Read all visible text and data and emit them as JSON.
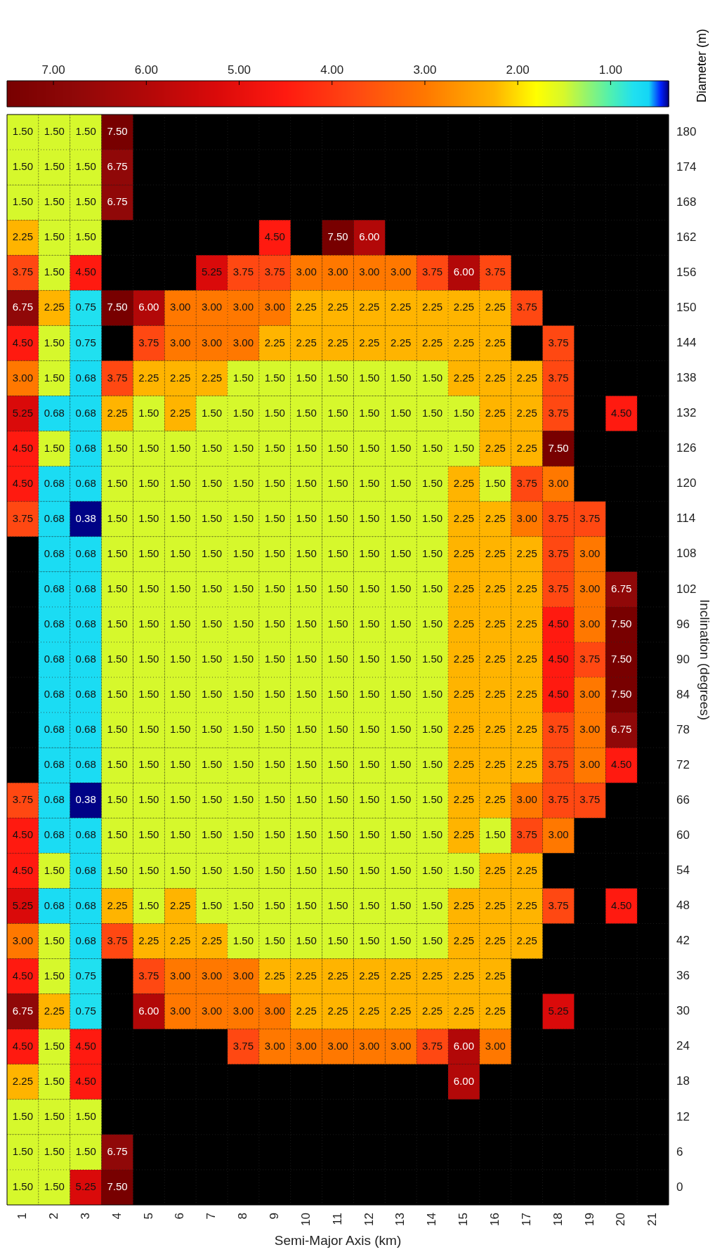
{
  "chart_data": {
    "type": "heatmap",
    "xlabel": "Semi-Major Axis (km)",
    "ylabel": "Inclination (degrees)",
    "clabel": "Diameter (m)",
    "categories": [
      "1",
      "2",
      "3",
      "4",
      "5",
      "6",
      "7",
      "8",
      "9",
      "10",
      "11",
      "12",
      "13",
      "14",
      "15",
      "16",
      "17",
      "18",
      "19",
      "20",
      "21"
    ],
    "y_categories": [
      "180",
      "174",
      "168",
      "162",
      "156",
      "150",
      "144",
      "138",
      "132",
      "126",
      "120",
      "114",
      "108",
      "102",
      "96",
      "90",
      "84",
      "78",
      "72",
      "66",
      "60",
      "54",
      "48",
      "42",
      "36",
      "30",
      "24",
      "18",
      "12",
      "6",
      "0"
    ],
    "clim": [
      7.5,
      0.375
    ],
    "cticks": [
      {
        "value": 7,
        "label": "7.00"
      },
      {
        "value": 6,
        "label": "6.00"
      },
      {
        "value": 5,
        "label": "5.00"
      },
      {
        "value": 4,
        "label": "4.00"
      },
      {
        "value": 3,
        "label": "3.00"
      },
      {
        "value": 2,
        "label": "2.00"
      },
      {
        "value": 1,
        "label": "1.00"
      }
    ],
    "cells": [
      [
        1.5,
        1.5,
        1.5,
        7.5,
        null,
        null,
        null,
        null,
        null,
        null,
        null,
        null,
        null,
        null,
        null,
        null,
        null,
        null,
        null,
        null,
        null
      ],
      [
        1.5,
        1.5,
        1.5,
        6.75,
        null,
        null,
        null,
        null,
        null,
        null,
        null,
        null,
        null,
        null,
        null,
        null,
        null,
        null,
        null,
        null,
        null
      ],
      [
        1.5,
        1.5,
        1.5,
        6.75,
        null,
        null,
        null,
        null,
        null,
        null,
        null,
        null,
        null,
        null,
        null,
        null,
        null,
        null,
        null,
        null,
        null
      ],
      [
        2.25,
        1.5,
        1.5,
        null,
        null,
        null,
        null,
        null,
        4.5,
        null,
        7.5,
        6,
        null,
        null,
        null,
        null,
        null,
        null,
        null,
        null,
        null
      ],
      [
        3.75,
        1.5,
        4.5,
        null,
        null,
        null,
        5.25,
        3.75,
        3.75,
        3,
        3,
        3,
        3,
        3.75,
        6,
        3.75,
        null,
        null,
        null,
        null,
        null
      ],
      [
        6.75,
        2.25,
        0.75,
        7.5,
        6,
        3,
        3,
        3,
        3,
        2.25,
        2.25,
        2.25,
        2.25,
        2.25,
        2.25,
        2.25,
        3.75,
        null,
        null,
        null,
        null
      ],
      [
        4.5,
        1.5,
        0.75,
        null,
        3.75,
        3,
        3,
        3,
        2.25,
        2.25,
        2.25,
        2.25,
        2.25,
        2.25,
        2.25,
        2.25,
        null,
        3.75,
        null,
        null,
        null
      ],
      [
        3,
        1.5,
        0.68,
        3.75,
        2.25,
        2.25,
        2.25,
        1.5,
        1.5,
        1.5,
        1.5,
        1.5,
        1.5,
        1.5,
        2.25,
        2.25,
        2.25,
        3.75,
        null,
        null,
        null
      ],
      [
        5.25,
        0.68,
        0.68,
        2.25,
        1.5,
        2.25,
        1.5,
        1.5,
        1.5,
        1.5,
        1.5,
        1.5,
        1.5,
        1.5,
        1.5,
        2.25,
        2.25,
        3.75,
        null,
        4.5,
        null
      ],
      [
        4.5,
        1.5,
        0.68,
        1.5,
        1.5,
        1.5,
        1.5,
        1.5,
        1.5,
        1.5,
        1.5,
        1.5,
        1.5,
        1.5,
        1.5,
        2.25,
        2.25,
        7.5,
        null,
        null,
        null
      ],
      [
        4.5,
        0.68,
        0.68,
        1.5,
        1.5,
        1.5,
        1.5,
        1.5,
        1.5,
        1.5,
        1.5,
        1.5,
        1.5,
        1.5,
        2.25,
        1.5,
        3.75,
        3,
        null,
        null,
        null
      ],
      [
        3.75,
        0.68,
        0.38,
        1.5,
        1.5,
        1.5,
        1.5,
        1.5,
        1.5,
        1.5,
        1.5,
        1.5,
        1.5,
        1.5,
        2.25,
        2.25,
        3,
        3.75,
        3.75,
        null,
        null
      ],
      [
        null,
        0.68,
        0.68,
        1.5,
        1.5,
        1.5,
        1.5,
        1.5,
        1.5,
        1.5,
        1.5,
        1.5,
        1.5,
        1.5,
        2.25,
        2.25,
        2.25,
        3.75,
        3,
        null,
        null
      ],
      [
        null,
        0.68,
        0.68,
        1.5,
        1.5,
        1.5,
        1.5,
        1.5,
        1.5,
        1.5,
        1.5,
        1.5,
        1.5,
        1.5,
        2.25,
        2.25,
        2.25,
        3.75,
        3,
        6.75,
        null
      ],
      [
        null,
        0.68,
        0.68,
        1.5,
        1.5,
        1.5,
        1.5,
        1.5,
        1.5,
        1.5,
        1.5,
        1.5,
        1.5,
        1.5,
        2.25,
        2.25,
        2.25,
        4.5,
        3,
        7.5,
        null
      ],
      [
        null,
        0.68,
        0.68,
        1.5,
        1.5,
        1.5,
        1.5,
        1.5,
        1.5,
        1.5,
        1.5,
        1.5,
        1.5,
        1.5,
        2.25,
        2.25,
        2.25,
        4.5,
        3.75,
        7.5,
        null
      ],
      [
        null,
        0.68,
        0.68,
        1.5,
        1.5,
        1.5,
        1.5,
        1.5,
        1.5,
        1.5,
        1.5,
        1.5,
        1.5,
        1.5,
        2.25,
        2.25,
        2.25,
        4.5,
        3,
        7.5,
        null
      ],
      [
        null,
        0.68,
        0.68,
        1.5,
        1.5,
        1.5,
        1.5,
        1.5,
        1.5,
        1.5,
        1.5,
        1.5,
        1.5,
        1.5,
        2.25,
        2.25,
        2.25,
        3.75,
        3,
        6.75,
        null
      ],
      [
        null,
        0.68,
        0.68,
        1.5,
        1.5,
        1.5,
        1.5,
        1.5,
        1.5,
        1.5,
        1.5,
        1.5,
        1.5,
        1.5,
        2.25,
        2.25,
        2.25,
        3.75,
        3,
        4.5,
        null
      ],
      [
        3.75,
        0.68,
        0.38,
        1.5,
        1.5,
        1.5,
        1.5,
        1.5,
        1.5,
        1.5,
        1.5,
        1.5,
        1.5,
        1.5,
        2.25,
        2.25,
        3,
        3.75,
        3.75,
        null,
        null
      ],
      [
        4.5,
        0.68,
        0.68,
        1.5,
        1.5,
        1.5,
        1.5,
        1.5,
        1.5,
        1.5,
        1.5,
        1.5,
        1.5,
        1.5,
        2.25,
        1.5,
        3.75,
        3,
        null,
        null,
        null
      ],
      [
        4.5,
        1.5,
        0.68,
        1.5,
        1.5,
        1.5,
        1.5,
        1.5,
        1.5,
        1.5,
        1.5,
        1.5,
        1.5,
        1.5,
        1.5,
        2.25,
        2.25,
        null,
        null,
        null,
        null
      ],
      [
        5.25,
        0.68,
        0.68,
        2.25,
        1.5,
        2.25,
        1.5,
        1.5,
        1.5,
        1.5,
        1.5,
        1.5,
        1.5,
        1.5,
        2.25,
        2.25,
        2.25,
        3.75,
        null,
        4.5,
        null
      ],
      [
        3,
        1.5,
        0.68,
        3.75,
        2.25,
        2.25,
        2.25,
        1.5,
        1.5,
        1.5,
        1.5,
        1.5,
        1.5,
        1.5,
        2.25,
        2.25,
        2.25,
        null,
        null,
        null,
        null
      ],
      [
        4.5,
        1.5,
        0.75,
        null,
        3.75,
        3,
        3,
        3,
        2.25,
        2.25,
        2.25,
        2.25,
        2.25,
        2.25,
        2.25,
        2.25,
        null,
        null,
        null,
        null,
        null
      ],
      [
        6.75,
        2.25,
        0.75,
        null,
        6,
        3,
        3,
        3,
        3,
        2.25,
        2.25,
        2.25,
        2.25,
        2.25,
        2.25,
        2.25,
        null,
        5.25,
        null,
        null,
        null
      ],
      [
        4.5,
        1.5,
        4.5,
        null,
        null,
        null,
        null,
        3.75,
        3,
        3,
        3,
        3,
        3,
        3.75,
        6,
        3,
        null,
        null,
        null,
        null,
        null
      ],
      [
        2.25,
        1.5,
        4.5,
        null,
        null,
        null,
        null,
        null,
        null,
        null,
        null,
        null,
        null,
        null,
        6,
        null,
        null,
        null,
        null,
        null,
        null
      ],
      [
        1.5,
        1.5,
        1.5,
        null,
        null,
        null,
        null,
        null,
        null,
        null,
        null,
        null,
        null,
        null,
        null,
        null,
        null,
        null,
        null,
        null,
        null
      ],
      [
        1.5,
        1.5,
        1.5,
        6.75,
        null,
        null,
        null,
        null,
        null,
        null,
        null,
        null,
        null,
        null,
        null,
        null,
        null,
        null,
        null,
        null,
        null
      ],
      [
        1.5,
        1.5,
        5.25,
        7.5,
        null,
        null,
        null,
        null,
        null,
        null,
        null,
        null,
        null,
        null,
        null,
        null,
        null,
        null,
        null,
        null,
        null
      ]
    ],
    "cell_labels": [
      [
        "1.50",
        "1.50",
        "1.50",
        "7.50",
        null,
        null,
        null,
        null,
        null,
        null,
        null,
        null,
        null,
        null,
        null,
        null,
        null,
        null,
        null,
        null,
        null
      ],
      [
        "1.50",
        "1.50",
        "1.50",
        "6.75",
        null,
        null,
        null,
        null,
        null,
        null,
        null,
        null,
        null,
        null,
        null,
        null,
        null,
        null,
        null,
        null,
        null
      ],
      [
        "1.50",
        "1.50",
        "1.50",
        "6.75",
        null,
        null,
        null,
        null,
        null,
        null,
        null,
        null,
        null,
        null,
        null,
        null,
        null,
        null,
        null,
        null,
        null
      ],
      [
        "2.25",
        "1.50",
        "1.50",
        null,
        null,
        null,
        null,
        null,
        "4.50",
        null,
        "7.50",
        "6.00",
        null,
        null,
        null,
        null,
        null,
        null,
        null,
        null,
        null
      ],
      [
        "3.75",
        "1.50",
        "4.50",
        null,
        null,
        null,
        "5.25",
        "3.75",
        "3.75",
        "3.00",
        "3.00",
        "3.00",
        "3.00",
        "3.75",
        "6.00",
        "3.75",
        null,
        null,
        null,
        null,
        null
      ],
      [
        "6.75",
        "2.25",
        "0.75",
        "7.50",
        "6.00",
        "3.00",
        "3.00",
        "3.00",
        "3.00",
        "2.25",
        "2.25",
        "2.25",
        "2.25",
        "2.25",
        "2.25",
        "2.25",
        "3.75",
        null,
        null,
        null,
        null
      ],
      [
        "4.50",
        "1.50",
        "0.75",
        null,
        "3.75",
        "3.00",
        "3.00",
        "3.00",
        "2.25",
        "2.25",
        "2.25",
        "2.25",
        "2.25",
        "2.25",
        "2.25",
        "2.25",
        null,
        "3.75",
        null,
        null,
        null
      ],
      [
        "3.00",
        "1.50",
        "0.68",
        "3.75",
        "2.25",
        "2.25",
        "2.25",
        "1.50",
        "1.50",
        "1.50",
        "1.50",
        "1.50",
        "1.50",
        "1.50",
        "2.25",
        "2.25",
        "2.25",
        "3.75",
        null,
        null,
        null
      ],
      [
        "5.25",
        "0.68",
        "0.68",
        "2.25",
        "1.50",
        "2.25",
        "1.50",
        "1.50",
        "1.50",
        "1.50",
        "1.50",
        "1.50",
        "1.50",
        "1.50",
        "1.50",
        "2.25",
        "2.25",
        "3.75",
        null,
        "4.50",
        null
      ],
      [
        "4.50",
        "1.50",
        "0.68",
        "1.50",
        "1.50",
        "1.50",
        "1.50",
        "1.50",
        "1.50",
        "1.50",
        "1.50",
        "1.50",
        "1.50",
        "1.50",
        "1.50",
        "2.25",
        "2.25",
        "7.50",
        null,
        null,
        null
      ],
      [
        "4.50",
        "0.68",
        "0.68",
        "1.50",
        "1.50",
        "1.50",
        "1.50",
        "1.50",
        "1.50",
        "1.50",
        "1.50",
        "1.50",
        "1.50",
        "1.50",
        "2.25",
        "1.50",
        "3.75",
        "3.00",
        null,
        null,
        null
      ],
      [
        "3.75",
        "0.68",
        "0.38",
        "1.50",
        "1.50",
        "1.50",
        "1.50",
        "1.50",
        "1.50",
        "1.50",
        "1.50",
        "1.50",
        "1.50",
        "1.50",
        "2.25",
        "2.25",
        "3.00",
        "3.75",
        "3.75",
        null,
        null
      ],
      [
        null,
        "0.68",
        "0.68",
        "1.50",
        "1.50",
        "1.50",
        "1.50",
        "1.50",
        "1.50",
        "1.50",
        "1.50",
        "1.50",
        "1.50",
        "1.50",
        "2.25",
        "2.25",
        "2.25",
        "3.75",
        "3.00",
        null,
        null
      ],
      [
        null,
        "0.68",
        "0.68",
        "1.50",
        "1.50",
        "1.50",
        "1.50",
        "1.50",
        "1.50",
        "1.50",
        "1.50",
        "1.50",
        "1.50",
        "1.50",
        "2.25",
        "2.25",
        "2.25",
        "3.75",
        "3.00",
        "6.75",
        null
      ],
      [
        null,
        "0.68",
        "0.68",
        "1.50",
        "1.50",
        "1.50",
        "1.50",
        "1.50",
        "1.50",
        "1.50",
        "1.50",
        "1.50",
        "1.50",
        "1.50",
        "2.25",
        "2.25",
        "2.25",
        "4.50",
        "3.00",
        "7.50",
        null
      ],
      [
        null,
        "0.68",
        "0.68",
        "1.50",
        "1.50",
        "1.50",
        "1.50",
        "1.50",
        "1.50",
        "1.50",
        "1.50",
        "1.50",
        "1.50",
        "1.50",
        "2.25",
        "2.25",
        "2.25",
        "4.50",
        "3.75",
        "7.50",
        null
      ],
      [
        null,
        "0.68",
        "0.68",
        "1.50",
        "1.50",
        "1.50",
        "1.50",
        "1.50",
        "1.50",
        "1.50",
        "1.50",
        "1.50",
        "1.50",
        "1.50",
        "2.25",
        "2.25",
        "2.25",
        "4.50",
        "3.00",
        "7.50",
        null
      ],
      [
        null,
        "0.68",
        "0.68",
        "1.50",
        "1.50",
        "1.50",
        "1.50",
        "1.50",
        "1.50",
        "1.50",
        "1.50",
        "1.50",
        "1.50",
        "1.50",
        "2.25",
        "2.25",
        "2.25",
        "3.75",
        "3.00",
        "6.75",
        null
      ],
      [
        null,
        "0.68",
        "0.68",
        "1.50",
        "1.50",
        "1.50",
        "1.50",
        "1.50",
        "1.50",
        "1.50",
        "1.50",
        "1.50",
        "1.50",
        "1.50",
        "2.25",
        "2.25",
        "2.25",
        "3.75",
        "3.00",
        "4.50",
        null
      ],
      [
        "3.75",
        "0.68",
        "0.38",
        "1.50",
        "1.50",
        "1.50",
        "1.50",
        "1.50",
        "1.50",
        "1.50",
        "1.50",
        "1.50",
        "1.50",
        "1.50",
        "2.25",
        "2.25",
        "3.00",
        "3.75",
        "3.75",
        null,
        null
      ],
      [
        "4.50",
        "0.68",
        "0.68",
        "1.50",
        "1.50",
        "1.50",
        "1.50",
        "1.50",
        "1.50",
        "1.50",
        "1.50",
        "1.50",
        "1.50",
        "1.50",
        "2.25",
        "1.50",
        "3.75",
        "3.00",
        null,
        null,
        null
      ],
      [
        "4.50",
        "1.50",
        "0.68",
        "1.50",
        "1.50",
        "1.50",
        "1.50",
        "1.50",
        "1.50",
        "1.50",
        "1.50",
        "1.50",
        "1.50",
        "1.50",
        "1.50",
        "2.25",
        "2.25",
        null,
        null,
        null,
        null
      ],
      [
        "5.25",
        "0.68",
        "0.68",
        "2.25",
        "1.50",
        "2.25",
        "1.50",
        "1.50",
        "1.50",
        "1.50",
        "1.50",
        "1.50",
        "1.50",
        "1.50",
        "2.25",
        "2.25",
        "2.25",
        "3.75",
        null,
        "4.50",
        null
      ],
      [
        "3.00",
        "1.50",
        "0.68",
        "3.75",
        "2.25",
        "2.25",
        "2.25",
        "1.50",
        "1.50",
        "1.50",
        "1.50",
        "1.50",
        "1.50",
        "1.50",
        "2.25",
        "2.25",
        "2.25",
        null,
        null,
        null,
        null
      ],
      [
        "4.50",
        "1.50",
        "0.75",
        null,
        "3.75",
        "3.00",
        "3.00",
        "3.00",
        "2.25",
        "2.25",
        "2.25",
        "2.25",
        "2.25",
        "2.25",
        "2.25",
        "2.25",
        null,
        null,
        null,
        null,
        null
      ],
      [
        "6.75",
        "2.25",
        "0.75",
        null,
        "6.00",
        "3.00",
        "3.00",
        "3.00",
        "3.00",
        "2.25",
        "2.25",
        "2.25",
        "2.25",
        "2.25",
        "2.25",
        "2.25",
        null,
        "5.25",
        null,
        null,
        null
      ],
      [
        "4.50",
        "1.50",
        "4.50",
        null,
        null,
        null,
        null,
        "3.75",
        "3.00",
        "3.00",
        "3.00",
        "3.00",
        "3.00",
        "3.75",
        "6.00",
        "3.00",
        null,
        null,
        null,
        null,
        null
      ],
      [
        "2.25",
        "1.50",
        "4.50",
        null,
        null,
        null,
        null,
        null,
        null,
        null,
        null,
        null,
        null,
        null,
        "6.00",
        null,
        null,
        null,
        null,
        null,
        null
      ],
      [
        "1.50",
        "1.50",
        "1.50",
        null,
        null,
        null,
        null,
        null,
        null,
        null,
        null,
        null,
        null,
        null,
        null,
        null,
        null,
        null,
        null,
        null,
        null
      ],
      [
        "1.50",
        "1.50",
        "1.50",
        "6.75",
        null,
        null,
        null,
        null,
        null,
        null,
        null,
        null,
        null,
        null,
        null,
        null,
        null,
        null,
        null,
        null,
        null
      ],
      [
        "1.50",
        "1.50",
        "5.25",
        "7.50",
        null,
        null,
        null,
        null,
        null,
        null,
        null,
        null,
        null,
        null,
        null,
        null,
        null,
        null,
        null,
        null,
        null
      ]
    ]
  }
}
